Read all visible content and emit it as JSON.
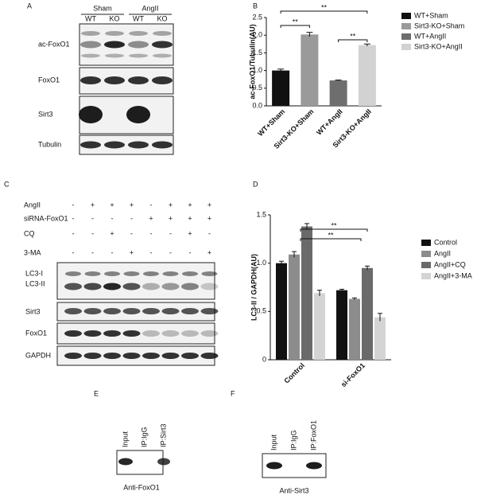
{
  "panel_letters": [
    "A",
    "B",
    "C",
    "D",
    "E",
    "F"
  ],
  "panel_a": {
    "groups": [
      "Sham",
      "AngII"
    ],
    "lanes": [
      "WT",
      "KO",
      "WT",
      "KO"
    ],
    "rows": [
      "ac-FoxO1",
      "FoxO1",
      "Sirt3",
      "Tubulin"
    ]
  },
  "panel_c": {
    "conditions": [
      {
        "name": "AngII",
        "signs": [
          "-",
          "+",
          "+",
          "+",
          "-",
          "+",
          "+",
          "+"
        ]
      },
      {
        "name": "siRNA-FoxO1",
        "signs": [
          "-",
          "-",
          "-",
          "-",
          "+",
          "+",
          "+",
          "+"
        ]
      },
      {
        "name": "CQ",
        "signs": [
          "-",
          "-",
          "+",
          "-",
          "-",
          "-",
          "+",
          "-"
        ]
      },
      {
        "name": "3-MA",
        "signs": [
          "-",
          "-",
          "-",
          "+",
          "-",
          "-",
          "-",
          "+"
        ]
      }
    ],
    "rows": [
      "LC3-I",
      "LC3-II",
      "Sirt3",
      "FoxO1",
      "GAPDH"
    ]
  },
  "panel_e": {
    "lanes": [
      "Input",
      "IP:IgG",
      "IP:Sirt3"
    ],
    "caption": "Anti-FoxO1"
  },
  "panel_f": {
    "lanes": [
      "Input",
      "IP:IgG",
      "IP:FoxO1"
    ],
    "caption": "Anti-Sirt3"
  },
  "chart_data": [
    {
      "type": "bar",
      "y_label": "ac-FoxO1/Tubulin(AU)",
      "categories": [
        "WT+Sham",
        "Sirt3-KO+Sham",
        "WT+AngII",
        "Sirt3-KO+AngII"
      ],
      "values": [
        1.0,
        2.02,
        0.72,
        1.72
      ],
      "errors": [
        0.04,
        0.06,
        0.01,
        0.03
      ],
      "colors": [
        "#111111",
        "#9a9a9a",
        "#6e6e6e",
        "#d2d2d2"
      ],
      "ylim": [
        0,
        2.5
      ],
      "yticks": [
        {
          "value": 0,
          "label": "0.0"
        },
        0.5,
        {
          "value": 1,
          "label": "1.0"
        },
        1.5,
        {
          "value": 2,
          "label": "2.0"
        },
        2.5
      ],
      "annotations": [
        "**",
        "**",
        "**"
      ],
      "legend": "right"
    },
    {
      "type": "grouped_bar",
      "y_label": "LC3-II / GAPDH(AU)",
      "categories": [
        "Control",
        "si-FoxO1"
      ],
      "series": [
        {
          "name": "Control",
          "color": "#111111",
          "values": [
            1.0,
            0.72
          ],
          "errors": [
            0.02,
            0.01
          ]
        },
        {
          "name": "AngII",
          "color": "#8c8c8c",
          "values": [
            1.09,
            0.63
          ],
          "errors": [
            0.03,
            0.01
          ]
        },
        {
          "name": "AngII+CQ",
          "color": "#6a6a6a",
          "values": [
            1.38,
            0.95
          ],
          "errors": [
            0.03,
            0.02
          ]
        },
        {
          "name": "AngII+3-MA",
          "color": "#d4d4d4",
          "values": [
            0.69,
            0.44
          ],
          "errors": [
            0.03,
            0.04
          ]
        }
      ],
      "ylim": [
        0,
        1.5
      ],
      "yticks": [
        0,
        0.5,
        {
          "value": 1,
          "label": "1.0"
        },
        1.5
      ],
      "annotations": [
        "**",
        "**"
      ],
      "legend": "right"
    }
  ]
}
